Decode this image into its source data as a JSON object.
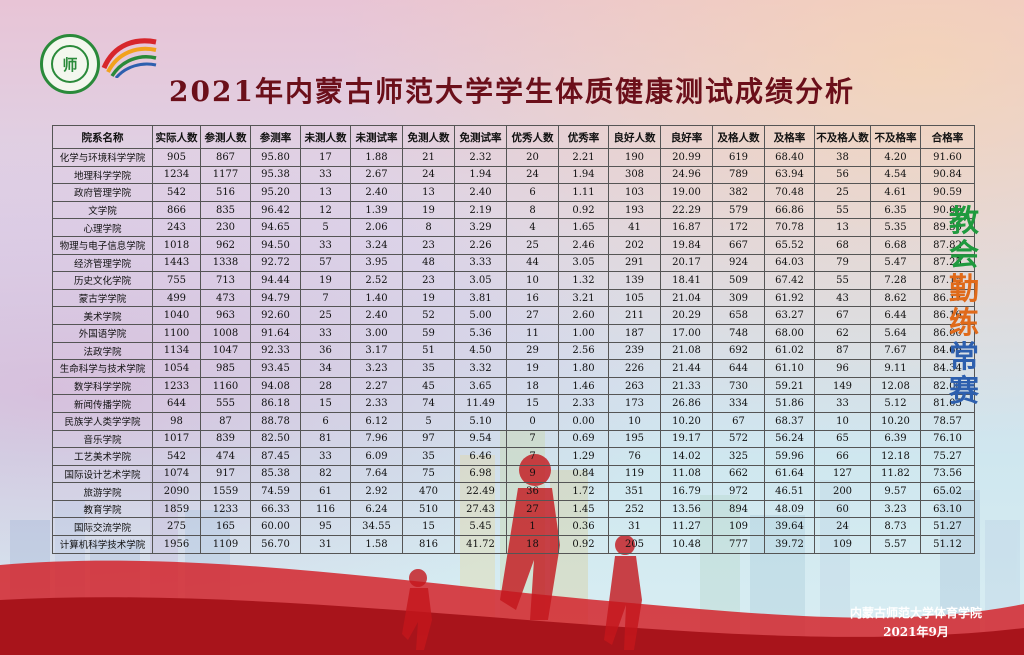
{
  "title": "2021年内蒙古师范大学学生体质健康测试成绩分析",
  "logo_text": "师",
  "slogan": [
    "教",
    "会",
    "勤",
    "练",
    "常",
    "赛"
  ],
  "footer": {
    "org": "内蒙古师范大学体育学院",
    "date": "2021年9月"
  },
  "colors": {
    "title": "#6b0f1a",
    "green": "#1f9a3e",
    "orange": "#e06a1a",
    "blue": "#2d5fae",
    "red": "#c4161c"
  },
  "table": {
    "headers": [
      "院系名称",
      "实际人数",
      "参测人数",
      "参测率",
      "未测人数",
      "未测试率",
      "免测人数",
      "免测试率",
      "优秀人数",
      "优秀率",
      "良好人数",
      "良好率",
      "及格人数",
      "及格率",
      "不及格人数",
      "不及格率",
      "合格率"
    ],
    "rows": [
      [
        "化学与环境科学学院",
        "905",
        "867",
        "95.80",
        "17",
        "1.88",
        "21",
        "2.32",
        "20",
        "2.21",
        "190",
        "20.99",
        "619",
        "68.40",
        "38",
        "4.20",
        "91.60"
      ],
      [
        "地理科学学院",
        "1234",
        "1177",
        "95.38",
        "33",
        "2.67",
        "24",
        "1.94",
        "24",
        "1.94",
        "308",
        "24.96",
        "789",
        "63.94",
        "56",
        "4.54",
        "90.84"
      ],
      [
        "政府管理学院",
        "542",
        "516",
        "95.20",
        "13",
        "2.40",
        "13",
        "2.40",
        "6",
        "1.11",
        "103",
        "19.00",
        "382",
        "70.48",
        "25",
        "4.61",
        "90.59"
      ],
      [
        "文学院",
        "866",
        "835",
        "96.42",
        "12",
        "1.39",
        "19",
        "2.19",
        "8",
        "0.92",
        "193",
        "22.29",
        "579",
        "66.86",
        "55",
        "6.35",
        "90.07"
      ],
      [
        "心理学院",
        "243",
        "230",
        "94.65",
        "5",
        "2.06",
        "8",
        "3.29",
        "4",
        "1.65",
        "41",
        "16.87",
        "172",
        "70.78",
        "13",
        "5.35",
        "89.30"
      ],
      [
        "物理与电子信息学院",
        "1018",
        "962",
        "94.50",
        "33",
        "3.24",
        "23",
        "2.26",
        "25",
        "2.46",
        "202",
        "19.84",
        "667",
        "65.52",
        "68",
        "6.68",
        "87.82"
      ],
      [
        "经济管理学院",
        "1443",
        "1338",
        "92.72",
        "57",
        "3.95",
        "48",
        "3.33",
        "44",
        "3.05",
        "291",
        "20.17",
        "924",
        "64.03",
        "79",
        "5.47",
        "87.25"
      ],
      [
        "历史文化学院",
        "755",
        "713",
        "94.44",
        "19",
        "2.52",
        "23",
        "3.05",
        "10",
        "1.32",
        "139",
        "18.41",
        "509",
        "67.42",
        "55",
        "7.28",
        "87.15"
      ],
      [
        "蒙古学学院",
        "499",
        "473",
        "94.79",
        "7",
        "1.40",
        "19",
        "3.81",
        "16",
        "3.21",
        "105",
        "21.04",
        "309",
        "61.92",
        "43",
        "8.62",
        "86.17"
      ],
      [
        "美术学院",
        "1040",
        "963",
        "92.60",
        "25",
        "2.40",
        "52",
        "5.00",
        "27",
        "2.60",
        "211",
        "20.29",
        "658",
        "63.27",
        "67",
        "6.44",
        "86.16"
      ],
      [
        "外国语学院",
        "1100",
        "1008",
        "91.64",
        "33",
        "3.00",
        "59",
        "5.36",
        "11",
        "1.00",
        "187",
        "17.00",
        "748",
        "68.00",
        "62",
        "5.64",
        "86.00"
      ],
      [
        "法政学院",
        "1134",
        "1047",
        "92.33",
        "36",
        "3.17",
        "51",
        "4.50",
        "29",
        "2.56",
        "239",
        "21.08",
        "692",
        "61.02",
        "87",
        "7.67",
        "84.66"
      ],
      [
        "生命科学与技术学院",
        "1054",
        "985",
        "93.45",
        "34",
        "3.23",
        "35",
        "3.32",
        "19",
        "1.80",
        "226",
        "21.44",
        "644",
        "61.10",
        "96",
        "9.11",
        "84.34"
      ],
      [
        "数学科学学院",
        "1233",
        "1160",
        "94.08",
        "28",
        "2.27",
        "45",
        "3.65",
        "18",
        "1.46",
        "263",
        "21.33",
        "730",
        "59.21",
        "149",
        "12.08",
        "82.00"
      ],
      [
        "新闻传播学院",
        "644",
        "555",
        "86.18",
        "15",
        "2.33",
        "74",
        "11.49",
        "15",
        "2.33",
        "173",
        "26.86",
        "334",
        "51.86",
        "33",
        "5.12",
        "81.05"
      ],
      [
        "民族学人类学学院",
        "98",
        "87",
        "88.78",
        "6",
        "6.12",
        "5",
        "5.10",
        "0",
        "0.00",
        "10",
        "10.20",
        "67",
        "68.37",
        "10",
        "10.20",
        "78.57"
      ],
      [
        "音乐学院",
        "1017",
        "839",
        "82.50",
        "81",
        "7.96",
        "97",
        "9.54",
        "7",
        "0.69",
        "195",
        "19.17",
        "572",
        "56.24",
        "65",
        "6.39",
        "76.10"
      ],
      [
        "工艺美术学院",
        "542",
        "474",
        "87.45",
        "33",
        "6.09",
        "35",
        "6.46",
        "7",
        "1.29",
        "76",
        "14.02",
        "325",
        "59.96",
        "66",
        "12.18",
        "75.27"
      ],
      [
        "国际设计艺术学院",
        "1074",
        "917",
        "85.38",
        "82",
        "7.64",
        "75",
        "6.98",
        "9",
        "0.84",
        "119",
        "11.08",
        "662",
        "61.64",
        "127",
        "11.82",
        "73.56"
      ],
      [
        "旅游学院",
        "2090",
        "1559",
        "74.59",
        "61",
        "2.92",
        "470",
        "22.49",
        "36",
        "1.72",
        "351",
        "16.79",
        "972",
        "46.51",
        "200",
        "9.57",
        "65.02"
      ],
      [
        "教育学院",
        "1859",
        "1233",
        "66.33",
        "116",
        "6.24",
        "510",
        "27.43",
        "27",
        "1.45",
        "252",
        "13.56",
        "894",
        "48.09",
        "60",
        "3.23",
        "63.10"
      ],
      [
        "国际交流学院",
        "275",
        "165",
        "60.00",
        "95",
        "34.55",
        "15",
        "5.45",
        "1",
        "0.36",
        "31",
        "11.27",
        "109",
        "39.64",
        "24",
        "8.73",
        "51.27"
      ],
      [
        "计算机科学技术学院",
        "1956",
        "1109",
        "56.70",
        "31",
        "1.58",
        "816",
        "41.72",
        "18",
        "0.92",
        "205",
        "10.48",
        "777",
        "39.72",
        "109",
        "5.57",
        "51.12"
      ]
    ]
  }
}
